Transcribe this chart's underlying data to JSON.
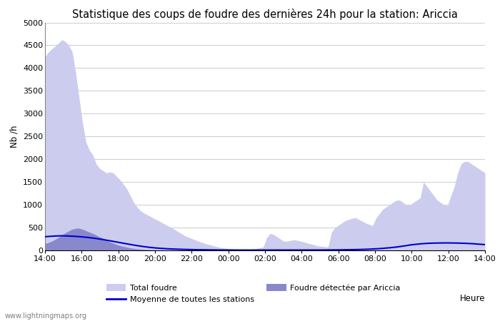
{
  "title": "Statistique des coups de foudre des dernières 24h pour la station: Ariccia",
  "ylabel": "Nb /h",
  "xlabel": "Heure",
  "watermark": "www.lightningmaps.org",
  "x_labels": [
    "14:00",
    "16:00",
    "18:00",
    "20:00",
    "22:00",
    "00:00",
    "02:00",
    "04:00",
    "06:00",
    "08:00",
    "10:00",
    "12:00",
    "14:00"
  ],
  "ylim": [
    0,
    5000
  ],
  "yticks": [
    0,
    500,
    1000,
    1500,
    2000,
    2500,
    3000,
    3500,
    4000,
    4500,
    5000
  ],
  "total_foudre": [
    4250,
    4350,
    4420,
    4480,
    4550,
    4620,
    4580,
    4500,
    4350,
    3900,
    3350,
    2800,
    2380,
    2200,
    2100,
    1900,
    1800,
    1750,
    1700,
    1720,
    1700,
    1620,
    1550,
    1450,
    1350,
    1200,
    1050,
    950,
    870,
    820,
    780,
    740,
    700,
    660,
    620,
    580,
    540,
    500,
    460,
    410,
    370,
    320,
    290,
    260,
    230,
    200,
    175,
    150,
    130,
    110,
    90,
    70,
    55,
    45,
    35,
    25,
    20,
    18,
    18,
    20,
    25,
    30,
    40,
    55,
    75,
    280,
    370,
    350,
    300,
    250,
    200,
    200,
    220,
    230,
    220,
    200,
    180,
    160,
    140,
    120,
    100,
    90,
    80,
    75,
    400,
    500,
    550,
    600,
    650,
    680,
    700,
    720,
    680,
    640,
    600,
    570,
    540,
    700,
    800,
    900,
    950,
    1000,
    1050,
    1100,
    1100,
    1050,
    1000,
    1000,
    1050,
    1100,
    1150,
    1500,
    1400,
    1300,
    1200,
    1100,
    1050,
    1000,
    980,
    1200,
    1400,
    1700,
    1900,
    1950,
    1950,
    1900,
    1850,
    1800,
    1750,
    1700
  ],
  "foudre_ariccia": [
    150,
    170,
    200,
    240,
    280,
    330,
    380,
    420,
    460,
    480,
    490,
    470,
    440,
    410,
    380,
    350,
    310,
    280,
    240,
    200,
    170,
    140,
    115,
    95,
    78,
    62,
    50,
    40,
    32,
    26,
    21,
    17,
    13,
    10,
    8,
    6,
    5,
    4,
    3,
    3,
    2,
    2,
    2,
    2,
    2,
    2,
    2,
    2,
    2,
    2,
    2,
    2,
    2,
    2,
    2,
    2,
    2,
    2,
    2,
    2,
    2,
    2,
    2,
    2,
    2,
    2,
    2,
    2,
    2,
    2,
    2,
    2,
    2,
    2,
    2,
    2,
    2,
    2,
    2,
    2,
    2,
    2,
    2,
    2,
    2,
    2,
    2,
    2,
    2,
    2,
    2,
    2,
    2,
    2,
    2,
    2,
    2,
    2,
    2,
    2,
    2,
    2,
    2,
    2,
    2,
    2,
    2,
    2,
    2,
    2,
    2,
    2,
    2,
    2,
    2,
    2,
    2,
    2,
    2,
    2,
    2,
    2,
    2,
    2,
    2,
    2,
    2,
    2,
    2,
    2,
    2,
    2,
    2
  ],
  "moyenne": [
    300,
    305,
    310,
    315,
    318,
    320,
    318,
    315,
    312,
    308,
    303,
    297,
    290,
    282,
    273,
    263,
    252,
    240,
    228,
    215,
    202,
    188,
    175,
    161,
    148,
    135,
    122,
    110,
    98,
    87,
    77,
    68,
    60,
    53,
    47,
    42,
    37,
    33,
    30,
    27,
    25,
    22,
    20,
    18,
    17,
    15,
    14,
    13,
    12,
    11,
    10,
    10,
    9,
    9,
    8,
    8,
    8,
    8,
    7,
    7,
    7,
    7,
    7,
    7,
    7,
    7,
    7,
    7,
    7,
    7,
    7,
    7,
    7,
    7,
    7,
    7,
    7,
    7,
    7,
    7,
    8,
    8,
    8,
    9,
    9,
    10,
    10,
    11,
    12,
    13,
    14,
    15,
    16,
    18,
    20,
    22,
    25,
    28,
    32,
    36,
    41,
    47,
    53,
    60,
    68,
    77,
    87,
    98,
    110,
    122,
    130,
    138,
    145,
    150,
    155,
    158,
    160,
    162,
    163,
    164,
    164,
    163,
    162,
    160,
    158,
    155,
    152,
    148,
    143,
    138,
    132,
    126
  ],
  "color_total": "#ccccee",
  "color_ariccia": "#8888cc",
  "color_moyenne": "#0000cc",
  "background_color": "#ffffff",
  "grid_color": "#cccccc",
  "title_fontsize": 10.5,
  "tick_fontsize": 8,
  "label_fontsize": 8.5,
  "legend_fontsize": 8
}
